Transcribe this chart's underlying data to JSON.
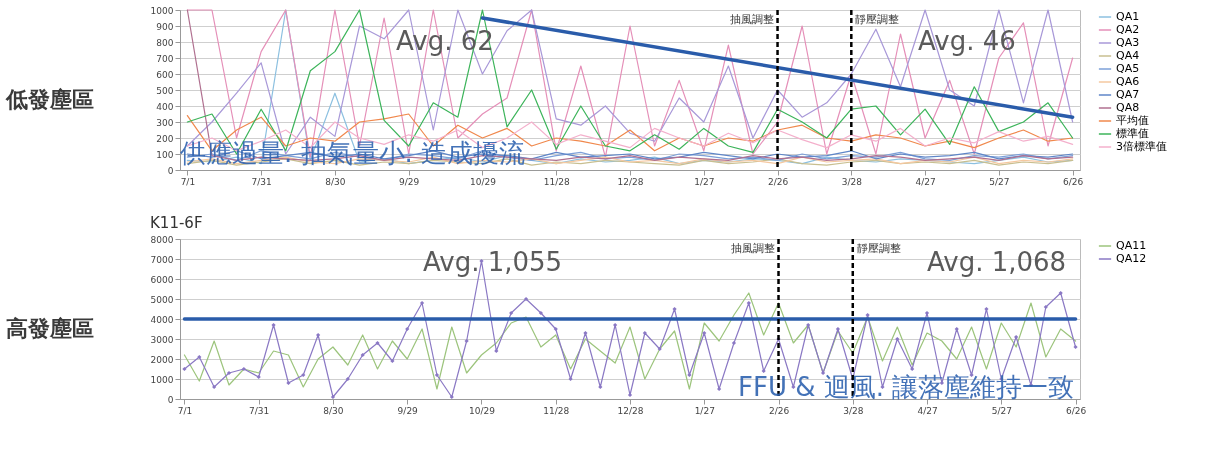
{
  "chart_data": [
    {
      "type": "line",
      "title": "低發塵區",
      "annotations": [
        "Avg. 62",
        "Avg. 46",
        "供應過量. 抽氣量小. 造成擾流"
      ],
      "categories": [
        "7/1",
        null,
        null,
        "7/31",
        null,
        null,
        "8/30",
        null,
        null,
        "9/29",
        null,
        null,
        "10/29",
        null,
        null,
        "11/28",
        null,
        null,
        "12/28",
        null,
        null,
        "1/27",
        null,
        null,
        "2/26",
        null,
        null,
        "3/28",
        null,
        null,
        "4/27",
        null,
        null,
        "5/27",
        null,
        null,
        "6/26"
      ],
      "ylim": [
        0,
        1000
      ],
      "yticks": [
        0,
        100,
        200,
        300,
        400,
        500,
        600,
        700,
        800,
        900,
        1000
      ],
      "grid": "y",
      "legend": "right",
      "ref_lines": [
        {
          "axis": "x",
          "value": "2/26",
          "label": "抽風調整",
          "color": "#000000",
          "line_style": "dashed"
        },
        {
          "axis": "x",
          "value": "3/28",
          "label": "靜壓調整",
          "color": "#000000",
          "line_style": "dashed"
        }
      ],
      "series": [
        {
          "name": "QA1",
          "color": "#8cc0e0",
          "values": [
            60,
            50,
            80,
            40,
            1000,
            60,
            480,
            50,
            70,
            40,
            60,
            80,
            50,
            90,
            60,
            40,
            70,
            50,
            60,
            80,
            40,
            60,
            50,
            70,
            60,
            40,
            80,
            60,
            50,
            70,
            60,
            50,
            40,
            60,
            80,
            50,
            60
          ]
        },
        {
          "name": "QA2",
          "color": "#e58fb8",
          "values": [
            1000,
            1000,
            200,
            740,
            1000,
            80,
            1000,
            150,
            950,
            100,
            1000,
            200,
            350,
            450,
            1000,
            120,
            650,
            80,
            900,
            150,
            560,
            120,
            780,
            100,
            300,
            900,
            100,
            600,
            100,
            850,
            200,
            560,
            100,
            700,
            920,
            150,
            700
          ]
        },
        {
          "name": "QA3",
          "color": "#a898d8",
          "values": [
            150,
            300,
            480,
            670,
            100,
            330,
            210,
            900,
            820,
            1000,
            250,
            1000,
            600,
            870,
            1000,
            320,
            280,
            400,
            230,
            180,
            450,
            300,
            650,
            200,
            500,
            330,
            420,
            600,
            880,
            520,
            1000,
            500,
            400,
            1000,
            420,
            1000,
            300
          ]
        },
        {
          "name": "QA4",
          "color": "#c8bf90",
          "values": [
            40,
            60,
            30,
            50,
            70,
            40,
            60,
            30,
            50,
            40,
            60,
            50,
            40,
            70,
            30,
            50,
            40,
            60,
            50,
            40,
            30,
            60,
            40,
            50,
            70,
            40,
            30,
            50,
            60,
            40,
            50,
            40,
            60,
            30,
            50,
            40,
            60
          ]
        },
        {
          "name": "QA5",
          "color": "#7da0d8",
          "values": [
            80,
            100,
            60,
            120,
            90,
            70,
            110,
            80,
            60,
            100,
            90,
            70,
            120,
            80,
            60,
            90,
            110,
            70,
            80,
            60,
            100,
            90,
            70,
            80,
            60,
            100,
            70,
            90,
            80,
            110,
            70,
            60,
            90,
            80,
            100,
            70,
            90
          ]
        },
        {
          "name": "QA6",
          "color": "#f5c8a0",
          "values": [
            50,
            70,
            40,
            60,
            80,
            50,
            40,
            70,
            60,
            50,
            80,
            40,
            60,
            50,
            70,
            40,
            60,
            80,
            50,
            60,
            40,
            70,
            50,
            60,
            40,
            80,
            50,
            60,
            70,
            40,
            60,
            50,
            80,
            40,
            60,
            50,
            70
          ]
        },
        {
          "name": "QA7",
          "color": "#5f86c8",
          "values": [
            100,
            80,
            120,
            70,
            90,
            110,
            80,
            100,
            70,
            90,
            120,
            80,
            100,
            90,
            70,
            110,
            80,
            90,
            100,
            70,
            80,
            110,
            90,
            70,
            100,
            80,
            90,
            120,
            70,
            100,
            80,
            90,
            110,
            70,
            90,
            80,
            100
          ]
        },
        {
          "name": "QA8",
          "color": "#b07090",
          "values": [
            1000,
            90,
            60,
            80,
            70,
            60,
            70,
            90,
            60,
            80,
            70,
            60,
            90,
            80,
            70,
            60,
            80,
            70,
            90,
            60,
            80,
            70,
            60,
            90,
            70,
            80,
            60,
            70,
            90,
            80,
            60,
            70,
            80,
            60,
            90,
            70,
            80
          ]
        },
        {
          "name": "平均值",
          "color": "#f0884c",
          "values": [
            340,
            120,
            250,
            330,
            150,
            200,
            180,
            300,
            320,
            350,
            150,
            280,
            200,
            260,
            150,
            200,
            180,
            150,
            250,
            120,
            200,
            150,
            200,
            180,
            250,
            280,
            200,
            180,
            220,
            200,
            150,
            180,
            140,
            200,
            250,
            180,
            200
          ]
        },
        {
          "name": "標準值",
          "color": "#3cb45a",
          "values": [
            300,
            350,
            100,
            380,
            120,
            620,
            740,
            1000,
            310,
            150,
            420,
            330,
            1000,
            270,
            500,
            130,
            400,
            150,
            120,
            220,
            130,
            260,
            150,
            110,
            380,
            300,
            200,
            380,
            400,
            220,
            380,
            160,
            520,
            240,
            300,
            420,
            200
          ]
        },
        {
          "name": "3倍標準值",
          "color": "#f4b0cc",
          "values": [
            150,
            200,
            120,
            180,
            250,
            140,
            300,
            200,
            160,
            220,
            180,
            250,
            140,
            200,
            300,
            160,
            220,
            180,
            140,
            260,
            200,
            150,
            230,
            170,
            250,
            190,
            140,
            220,
            180,
            260,
            150,
            200,
            170,
            240,
            180,
            210,
            160
          ]
        },
        {
          "type": "line",
          "color": "#2a5caa",
          "x": [
            "10/29",
            "6/26"
          ],
          "values": [
            950,
            330
          ]
        }
      ]
    },
    {
      "type": "line",
      "title": "高發塵區",
      "subtitle": "K11-6F",
      "annotations": [
        "Avg. 1,055",
        "Avg. 1,068",
        "FFU & 迴風. 讓落塵維持一致"
      ],
      "categories": [
        "7/1",
        null,
        null,
        null,
        null,
        "7/31",
        null,
        null,
        null,
        null,
        "8/30",
        null,
        null,
        null,
        null,
        "9/29",
        null,
        null,
        null,
        null,
        "10/29",
        null,
        null,
        null,
        null,
        "11/28",
        null,
        null,
        null,
        null,
        "12/28",
        null,
        null,
        null,
        null,
        "1/27",
        null,
        null,
        null,
        null,
        "2/26",
        null,
        null,
        null,
        null,
        "3/28",
        null,
        null,
        null,
        null,
        "4/27",
        null,
        null,
        null,
        null,
        "5/27",
        null,
        null,
        null,
        null,
        "6/26"
      ],
      "ylim": [
        0,
        8000
      ],
      "yticks": [
        0,
        1000,
        2000,
        3000,
        4000,
        5000,
        6000,
        7000,
        8000
      ],
      "grid": "y",
      "legend": "right",
      "ref_lines": [
        {
          "axis": "x",
          "value": "2/26",
          "label": "抽風調整",
          "color": "#000000",
          "line_style": "dashed"
        },
        {
          "axis": "x",
          "value": "3/28",
          "label": "靜壓調整",
          "color": "#000000",
          "line_style": "dashed"
        }
      ],
      "series": [
        {
          "name": "QA11",
          "color": "#9cc47c",
          "marker": "none",
          "values": [
            2200,
            900,
            2900,
            700,
            1500,
            1300,
            2400,
            2200,
            600,
            2000,
            2600,
            1700,
            3200,
            1500,
            2900,
            2000,
            3500,
            500,
            3600,
            1300,
            2200,
            2800,
            3800,
            4100,
            2600,
            3200,
            1500,
            3000,
            2400,
            1800,
            3600,
            1000,
            2500,
            3400,
            500,
            3800,
            2900,
            4200,
            5300,
            3200,
            4800,
            2800,
            3700,
            1300,
            3400,
            2300,
            4100,
            1900,
            3600,
            1700,
            3300,
            2900,
            2000,
            3600,
            1500,
            3800,
            2600,
            4800,
            2100,
            3500,
            2900
          ]
        },
        {
          "name": "QA12",
          "color": "#8a78c4",
          "marker": "diamond",
          "values": [
            1500,
            2100,
            600,
            1300,
            1500,
            1100,
            3700,
            800,
            1200,
            3200,
            100,
            1000,
            2200,
            2800,
            1900,
            3500,
            4800,
            1200,
            100,
            2900,
            6900,
            2400,
            4300,
            5000,
            4300,
            3500,
            1000,
            3300,
            600,
            3700,
            200,
            3300,
            2500,
            4500,
            1200,
            3300,
            500,
            2800,
            4800,
            1400,
            3000,
            600,
            3700,
            1300,
            3500,
            1000,
            4200,
            600,
            3000,
            1500,
            4300,
            800,
            3500,
            1200,
            4500,
            1000,
            3100,
            700,
            4600,
            5300,
            2600
          ]
        },
        {
          "type": "line",
          "color": "#2a5caa",
          "x": [
            "7/1",
            "6/26"
          ],
          "values": [
            4000,
            4000
          ]
        }
      ]
    }
  ]
}
